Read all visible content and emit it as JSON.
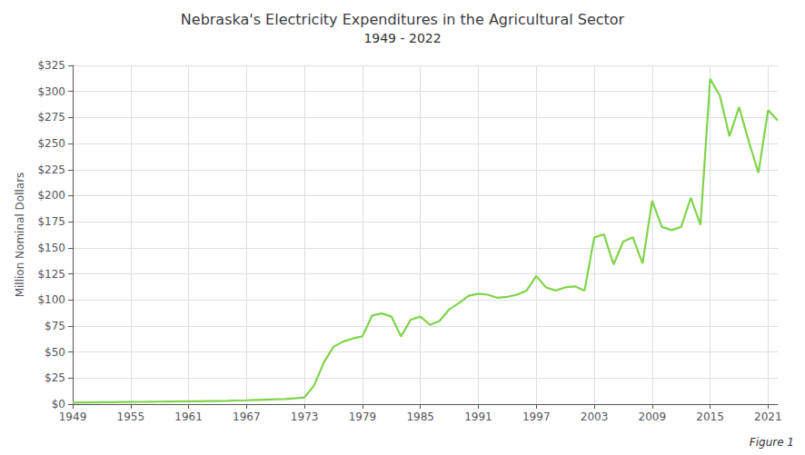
{
  "chart_data": {
    "type": "line",
    "title": "Nebraska's Electricity Expenditures in the Agricultural Sector",
    "subtitle": "1949 - 2022",
    "ylabel": "Million Nominal Dollars",
    "annotation": "Figure 1",
    "color": "#7FD44B",
    "grid": true,
    "x": [
      1949,
      1950,
      1951,
      1952,
      1953,
      1954,
      1955,
      1956,
      1957,
      1958,
      1959,
      1960,
      1961,
      1962,
      1963,
      1964,
      1965,
      1966,
      1967,
      1968,
      1969,
      1970,
      1971,
      1972,
      1973,
      1974,
      1975,
      1976,
      1977,
      1978,
      1979,
      1980,
      1981,
      1982,
      1983,
      1984,
      1985,
      1986,
      1987,
      1988,
      1989,
      1990,
      1991,
      1992,
      1993,
      1994,
      1995,
      1996,
      1997,
      1998,
      1999,
      2000,
      2001,
      2002,
      2003,
      2004,
      2005,
      2006,
      2007,
      2008,
      2009,
      2010,
      2011,
      2012,
      2013,
      2014,
      2015,
      2016,
      2017,
      2018,
      2019,
      2020,
      2021,
      2022
    ],
    "values": [
      1.5,
      1.6,
      1.7,
      1.8,
      1.9,
      2.0,
      2.1,
      2.2,
      2.3,
      2.4,
      2.5,
      2.6,
      2.7,
      2.8,
      2.9,
      3.0,
      3.2,
      3.5,
      3.7,
      4.0,
      4.3,
      4.6,
      4.9,
      5.5,
      6.5,
      18.0,
      40.0,
      55.0,
      60.0,
      63.0,
      65.0,
      85.0,
      87.0,
      84.0,
      65.0,
      81.0,
      84.0,
      76.0,
      80.0,
      91.0,
      97.0,
      104.0,
      106.0,
      105.0,
      102.0,
      103.0,
      105.0,
      109.0,
      123.0,
      112.0,
      109.0,
      112.0,
      113.0,
      109.0,
      160.0,
      163.0,
      134.0,
      156.0,
      160.0,
      135.0,
      195.0,
      170.0,
      167.0,
      170.0,
      198.0,
      172.0,
      312.0,
      296.0,
      257.0,
      285.0,
      252.0,
      222.0,
      282.0,
      272.0
    ],
    "xlim": [
      1949,
      2022
    ],
    "xticks": [
      1949,
      1955,
      1961,
      1967,
      1973,
      1979,
      1985,
      1991,
      1997,
      2003,
      2009,
      2015,
      2021
    ],
    "ylim": [
      0,
      325
    ],
    "yticks": [
      {
        "value": 0,
        "label": "$0"
      },
      {
        "value": 25,
        "label": "$25"
      },
      {
        "value": 50,
        "label": "$50"
      },
      {
        "value": 75,
        "label": "$75"
      },
      {
        "value": 100,
        "label": "$100"
      },
      {
        "value": 125,
        "label": "$125"
      },
      {
        "value": 150,
        "label": "$150"
      },
      {
        "value": 175,
        "label": "$175"
      },
      {
        "value": 200,
        "label": "$200"
      },
      {
        "value": 225,
        "label": "$225"
      },
      {
        "value": 250,
        "label": "$250"
      },
      {
        "value": 275,
        "label": "$275"
      },
      {
        "value": 300,
        "label": "$300"
      },
      {
        "value": 325,
        "label": "$325"
      }
    ]
  }
}
